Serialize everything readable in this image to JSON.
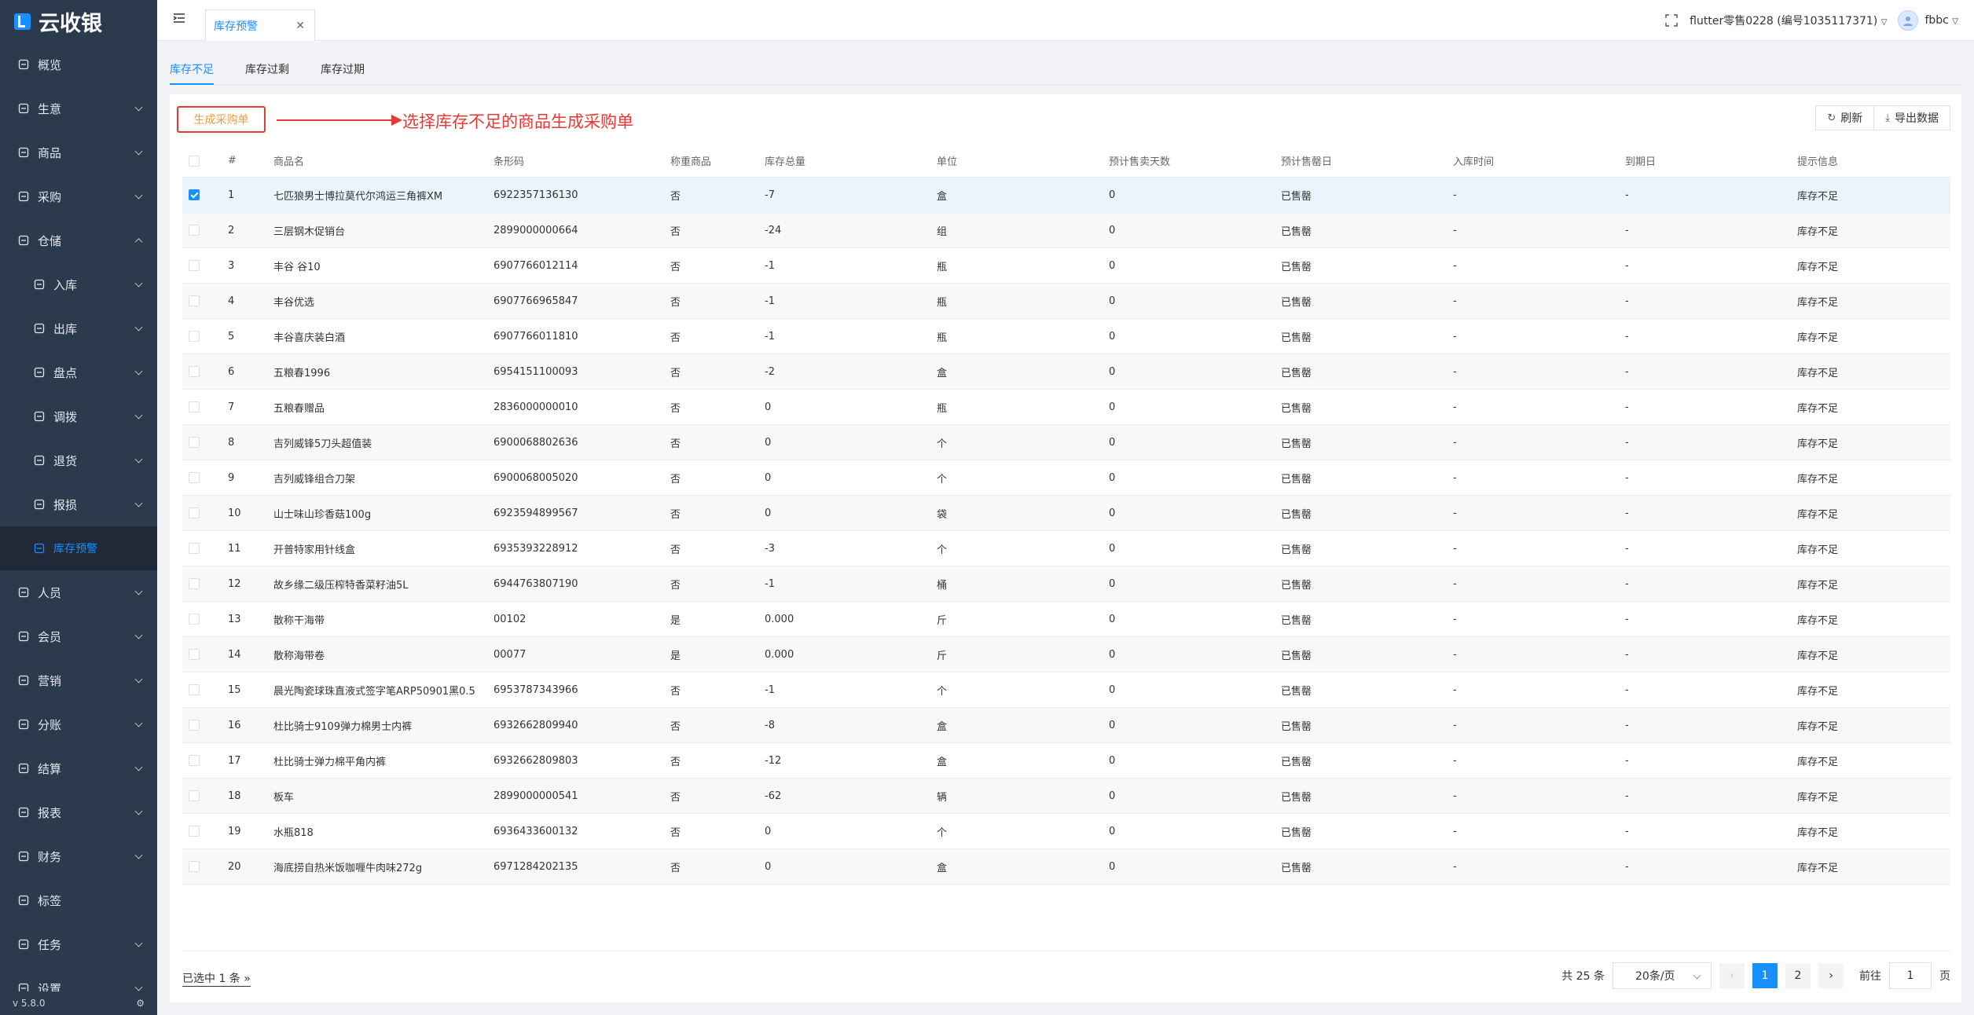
{
  "app": {
    "title": "云收银",
    "version": "v 5.8.0"
  },
  "sidebar": {
    "items": [
      {
        "label": "概览",
        "icon": "dashboard-icon",
        "arrow": false
      },
      {
        "label": "生意",
        "icon": "business-icon",
        "arrow": true
      },
      {
        "label": "商品",
        "icon": "goods-icon",
        "arrow": true
      },
      {
        "label": "采购",
        "icon": "purchase-icon",
        "arrow": true
      },
      {
        "label": "仓储",
        "icon": "warehouse-icon",
        "arrow": true,
        "open": true
      },
      {
        "label": "入库",
        "icon": "inbound-icon",
        "arrow": true,
        "sub": true
      },
      {
        "label": "出库",
        "icon": "outbound-icon",
        "arrow": true,
        "sub": true
      },
      {
        "label": "盘点",
        "icon": "stocktake-icon",
        "arrow": true,
        "sub": true
      },
      {
        "label": "调拨",
        "icon": "transfer-icon",
        "arrow": true,
        "sub": true
      },
      {
        "label": "退货",
        "icon": "return-icon",
        "arrow": true,
        "sub": true
      },
      {
        "label": "报损",
        "icon": "loss-icon",
        "arrow": true,
        "sub": true
      },
      {
        "label": "库存预警",
        "icon": "stock-alert-icon",
        "arrow": false,
        "sub": true,
        "active": true
      },
      {
        "label": "人员",
        "icon": "staff-icon",
        "arrow": true
      },
      {
        "label": "会员",
        "icon": "member-icon",
        "arrow": true
      },
      {
        "label": "营销",
        "icon": "marketing-icon",
        "arrow": true
      },
      {
        "label": "分账",
        "icon": "split-icon",
        "arrow": true
      },
      {
        "label": "结算",
        "icon": "settlement-icon",
        "arrow": true
      },
      {
        "label": "报表",
        "icon": "report-icon",
        "arrow": true
      },
      {
        "label": "财务",
        "icon": "finance-icon",
        "arrow": true
      },
      {
        "label": "标签",
        "icon": "label-icon",
        "arrow": false
      },
      {
        "label": "任务",
        "icon": "task-icon",
        "arrow": true
      },
      {
        "label": "设置",
        "icon": "settings-icon",
        "arrow": true
      }
    ]
  },
  "header": {
    "tab_label": "库存预警",
    "store": "flutter零售0228 (编号1035117371)",
    "user": "fbbc"
  },
  "subtabs": [
    "库存不足",
    "库存过剩",
    "库存过期"
  ],
  "toolbar": {
    "generate_label": "生成采购单",
    "annotation": "选择库存不足的商品生成采购单",
    "refresh_label": "刷新",
    "export_label": "导出数据"
  },
  "table": {
    "headers": [
      "#",
      "商品名",
      "条形码",
      "称重商品",
      "库存总量",
      "单位",
      "预计售卖天数",
      "预计售罄日",
      "入库时间",
      "到期日",
      "提示信息"
    ],
    "rows": [
      {
        "idx": "1",
        "name": "七匹狼男士博拉莫代尔鸿运三角裤XM",
        "barcode": "6922357136130",
        "weighed": "否",
        "qty": "-7",
        "unit": "盒",
        "days": "0",
        "soldout": "已售罄",
        "in": "-",
        "exp": "-",
        "tip": "库存不足",
        "checked": true
      },
      {
        "idx": "2",
        "name": "三层钢木促销台",
        "barcode": "2899000000664",
        "weighed": "否",
        "qty": "-24",
        "unit": "组",
        "days": "0",
        "soldout": "已售罄",
        "in": "-",
        "exp": "-",
        "tip": "库存不足"
      },
      {
        "idx": "3",
        "name": "丰谷 谷10",
        "barcode": "6907766012114",
        "weighed": "否",
        "qty": "-1",
        "unit": "瓶",
        "days": "0",
        "soldout": "已售罄",
        "in": "-",
        "exp": "-",
        "tip": "库存不足"
      },
      {
        "idx": "4",
        "name": "丰谷优选",
        "barcode": "6907766965847",
        "weighed": "否",
        "qty": "-1",
        "unit": "瓶",
        "days": "0",
        "soldout": "已售罄",
        "in": "-",
        "exp": "-",
        "tip": "库存不足"
      },
      {
        "idx": "5",
        "name": "丰谷喜庆装白酒",
        "barcode": "6907766011810",
        "weighed": "否",
        "qty": "-1",
        "unit": "瓶",
        "days": "0",
        "soldout": "已售罄",
        "in": "-",
        "exp": "-",
        "tip": "库存不足"
      },
      {
        "idx": "6",
        "name": "五粮春1996",
        "barcode": "6954151100093",
        "weighed": "否",
        "qty": "-2",
        "unit": "盒",
        "days": "0",
        "soldout": "已售罄",
        "in": "-",
        "exp": "-",
        "tip": "库存不足"
      },
      {
        "idx": "7",
        "name": "五粮春赠品",
        "barcode": "2836000000010",
        "weighed": "否",
        "qty": "0",
        "unit": "瓶",
        "days": "0",
        "soldout": "已售罄",
        "in": "-",
        "exp": "-",
        "tip": "库存不足"
      },
      {
        "idx": "8",
        "name": "吉列威锋5刀头超值装",
        "barcode": "6900068802636",
        "weighed": "否",
        "qty": "0",
        "unit": "个",
        "days": "0",
        "soldout": "已售罄",
        "in": "-",
        "exp": "-",
        "tip": "库存不足"
      },
      {
        "idx": "9",
        "name": "吉列威锋组合刀架",
        "barcode": "6900068005020",
        "weighed": "否",
        "qty": "0",
        "unit": "个",
        "days": "0",
        "soldout": "已售罄",
        "in": "-",
        "exp": "-",
        "tip": "库存不足"
      },
      {
        "idx": "10",
        "name": "山士味山珍香菇100g",
        "barcode": "6923594899567",
        "weighed": "否",
        "qty": "0",
        "unit": "袋",
        "days": "0",
        "soldout": "已售罄",
        "in": "-",
        "exp": "-",
        "tip": "库存不足"
      },
      {
        "idx": "11",
        "name": "开普特家用针线盒",
        "barcode": "6935393228912",
        "weighed": "否",
        "qty": "-3",
        "unit": "个",
        "days": "0",
        "soldout": "已售罄",
        "in": "-",
        "exp": "-",
        "tip": "库存不足"
      },
      {
        "idx": "12",
        "name": "故乡缘二级压榨特香菜籽油5L",
        "barcode": "6944763807190",
        "weighed": "否",
        "qty": "-1",
        "unit": "桶",
        "days": "0",
        "soldout": "已售罄",
        "in": "-",
        "exp": "-",
        "tip": "库存不足"
      },
      {
        "idx": "13",
        "name": "散称干海带",
        "barcode": "00102",
        "weighed": "是",
        "qty": "0.000",
        "unit": "斤",
        "days": "0",
        "soldout": "已售罄",
        "in": "-",
        "exp": "-",
        "tip": "库存不足"
      },
      {
        "idx": "14",
        "name": "散称海带卷",
        "barcode": "00077",
        "weighed": "是",
        "qty": "0.000",
        "unit": "斤",
        "days": "0",
        "soldout": "已售罄",
        "in": "-",
        "exp": "-",
        "tip": "库存不足"
      },
      {
        "idx": "15",
        "name": "晨光陶瓷球珠直液式签字笔ARP50901黑0.5",
        "barcode": "6953787343966",
        "weighed": "否",
        "qty": "-1",
        "unit": "个",
        "days": "0",
        "soldout": "已售罄",
        "in": "-",
        "exp": "-",
        "tip": "库存不足"
      },
      {
        "idx": "16",
        "name": "杜比骑士9109弹力棉男士内裤",
        "barcode": "6932662809940",
        "weighed": "否",
        "qty": "-8",
        "unit": "盒",
        "days": "0",
        "soldout": "已售罄",
        "in": "-",
        "exp": "-",
        "tip": "库存不足"
      },
      {
        "idx": "17",
        "name": "杜比骑士弹力棉平角内裤",
        "barcode": "6932662809803",
        "weighed": "否",
        "qty": "-12",
        "unit": "盒",
        "days": "0",
        "soldout": "已售罄",
        "in": "-",
        "exp": "-",
        "tip": "库存不足"
      },
      {
        "idx": "18",
        "name": "板车",
        "barcode": "2899000000541",
        "weighed": "否",
        "qty": "-62",
        "unit": "辆",
        "days": "0",
        "soldout": "已售罄",
        "in": "-",
        "exp": "-",
        "tip": "库存不足"
      },
      {
        "idx": "19",
        "name": "水瓶818",
        "barcode": "6936433600132",
        "weighed": "否",
        "qty": "0",
        "unit": "个",
        "days": "0",
        "soldout": "已售罄",
        "in": "-",
        "exp": "-",
        "tip": "库存不足"
      },
      {
        "idx": "20",
        "name": "海底捞自热米饭咖喱牛肉味272g",
        "barcode": "6971284202135",
        "weighed": "否",
        "qty": "0",
        "unit": "盒",
        "days": "0",
        "soldout": "已售罄",
        "in": "-",
        "exp": "-",
        "tip": "库存不足"
      }
    ]
  },
  "footer": {
    "selected_text": "已选中 1 条",
    "total_text": "共 25 条",
    "page_size": "20条/页",
    "pages": [
      "1",
      "2"
    ],
    "current_page": "1",
    "goto_label": "前往",
    "goto_value": "1",
    "page_suffix": "页"
  },
  "colors": {
    "accent": "#1890ff",
    "sidebar": "#2b3a4d",
    "annotation": "#e53935"
  }
}
